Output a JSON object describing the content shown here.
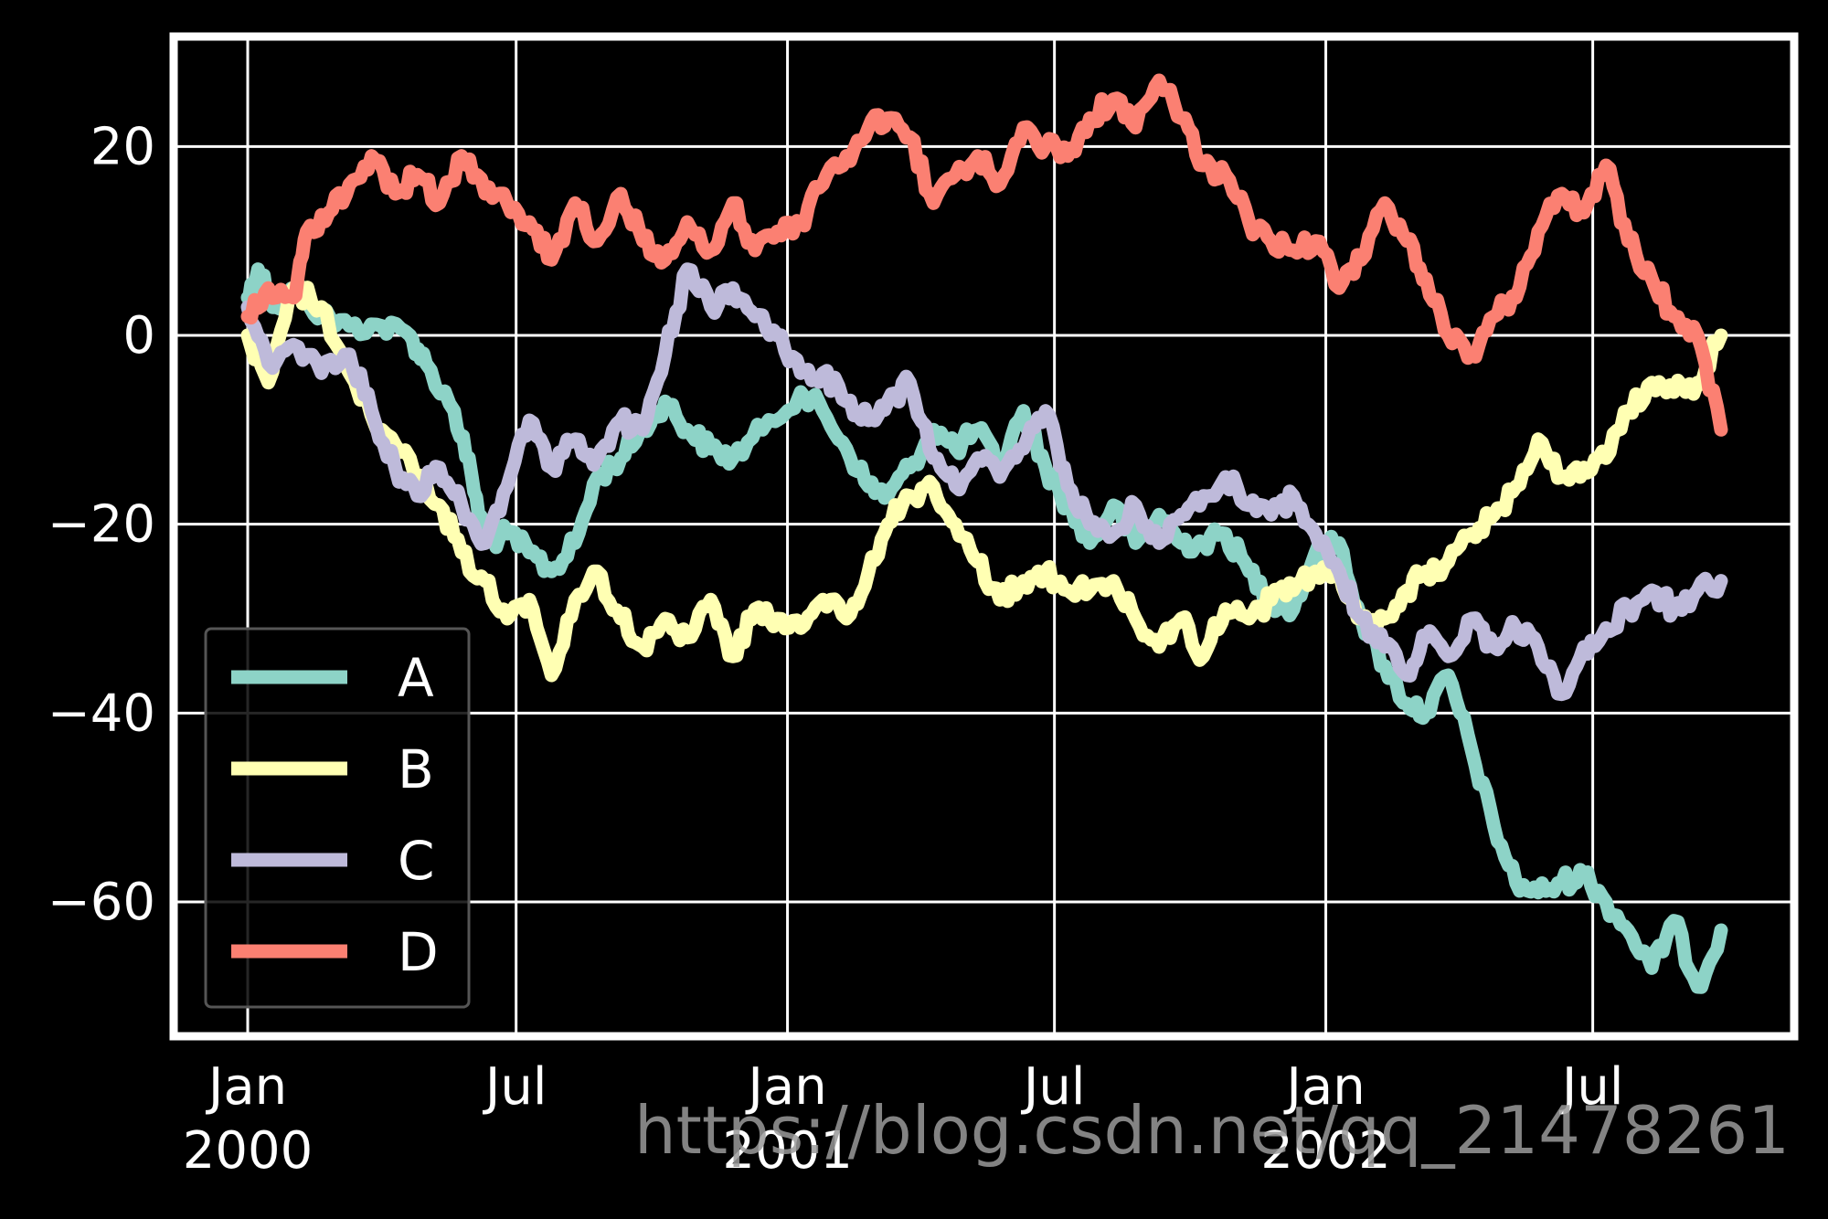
{
  "chart_data": {
    "type": "line",
    "title": "",
    "xlabel": "",
    "ylabel": "",
    "x_range": [
      "2000-01-01",
      "2002-09-26"
    ],
    "ylim": [
      -75,
      32
    ],
    "grid": true,
    "legend_position": "lower left",
    "background": "#000000",
    "y_ticks": [
      {
        "value": 20,
        "label": "20"
      },
      {
        "value": 0,
        "label": "0"
      },
      {
        "value": -20,
        "label": "−20"
      },
      {
        "value": -40,
        "label": "−40"
      },
      {
        "value": -60,
        "label": "−60"
      }
    ],
    "x_ticks": [
      {
        "date": "2000-01-01",
        "label_line1": "Jan",
        "label_line2": "2000"
      },
      {
        "date": "2000-07-01",
        "label_line1": "Jul",
        "label_line2": ""
      },
      {
        "date": "2001-01-01",
        "label_line1": "Jan",
        "label_line2": "2001"
      },
      {
        "date": "2001-07-01",
        "label_line1": "Jul",
        "label_line2": ""
      },
      {
        "date": "2002-01-01",
        "label_line1": "Jan",
        "label_line2": "2002"
      },
      {
        "date": "2002-07-01",
        "label_line1": "Jul",
        "label_line2": ""
      }
    ],
    "series": [
      {
        "name": "A",
        "color": "#8dd3c7",
        "points": [
          [
            "2000-01-01",
            4
          ],
          [
            "2000-01-08",
            7
          ],
          [
            "2000-01-20",
            3
          ],
          [
            "2000-02-05",
            5
          ],
          [
            "2000-02-20",
            2
          ],
          [
            "2000-03-10",
            1
          ],
          [
            "2000-04-01",
            1
          ],
          [
            "2000-04-20",
            0
          ],
          [
            "2000-05-01",
            -3
          ],
          [
            "2000-05-20",
            -8
          ],
          [
            "2000-06-01",
            -15
          ],
          [
            "2000-06-10",
            -22
          ],
          [
            "2000-06-25",
            -21
          ],
          [
            "2000-07-10",
            -23
          ],
          [
            "2000-07-25",
            -25
          ],
          [
            "2000-08-10",
            -22
          ],
          [
            "2000-08-25",
            -15
          ],
          [
            "2000-09-10",
            -13
          ],
          [
            "2000-09-25",
            -10
          ],
          [
            "2000-10-10",
            -7
          ],
          [
            "2000-10-25",
            -10
          ],
          [
            "2000-11-10",
            -12
          ],
          [
            "2000-11-25",
            -13
          ],
          [
            "2000-12-15",
            -10
          ],
          [
            "2001-01-10",
            -6
          ],
          [
            "2001-01-25",
            -8
          ],
          [
            "2001-02-10",
            -12
          ],
          [
            "2001-02-25",
            -16
          ],
          [
            "2001-03-10",
            -17
          ],
          [
            "2001-03-25",
            -14
          ],
          [
            "2001-04-10",
            -10
          ],
          [
            "2001-04-25",
            -12
          ],
          [
            "2001-05-10",
            -10
          ],
          [
            "2001-05-25",
            -14
          ],
          [
            "2001-06-10",
            -8
          ],
          [
            "2001-06-25",
            -14
          ],
          [
            "2001-07-10",
            -18
          ],
          [
            "2001-07-25",
            -22
          ],
          [
            "2001-08-10",
            -18
          ],
          [
            "2001-08-25",
            -22
          ],
          [
            "2001-09-10",
            -19
          ],
          [
            "2001-09-25",
            -22
          ],
          [
            "2001-10-10",
            -22
          ],
          [
            "2001-10-25",
            -21
          ],
          [
            "2001-11-10",
            -25
          ],
          [
            "2001-11-25",
            -28
          ],
          [
            "2001-12-10",
            -29
          ],
          [
            "2001-12-25",
            -23
          ],
          [
            "2002-01-10",
            -22
          ],
          [
            "2002-01-25",
            -30
          ],
          [
            "2002-02-10",
            -35
          ],
          [
            "2002-02-25",
            -39
          ],
          [
            "2002-03-10",
            -40
          ],
          [
            "2002-03-25",
            -36
          ],
          [
            "2002-04-10",
            -44
          ],
          [
            "2002-04-25",
            -52
          ],
          [
            "2002-05-10",
            -58
          ],
          [
            "2002-05-25",
            -59
          ],
          [
            "2002-06-10",
            -58
          ],
          [
            "2002-06-25",
            -57
          ],
          [
            "2002-07-10",
            -60
          ],
          [
            "2002-07-25",
            -63
          ],
          [
            "2002-08-10",
            -67
          ],
          [
            "2002-08-25",
            -62
          ],
          [
            "2002-09-10",
            -69
          ],
          [
            "2002-09-26",
            -63
          ]
        ]
      },
      {
        "name": "B",
        "color": "#ffffb3",
        "points": [
          [
            "2000-01-01",
            0
          ],
          [
            "2000-01-15",
            -5
          ],
          [
            "2000-02-01",
            5
          ],
          [
            "2000-02-20",
            3
          ],
          [
            "2000-03-10",
            -4
          ],
          [
            "2000-04-01",
            -10
          ],
          [
            "2000-04-20",
            -13
          ],
          [
            "2000-05-10",
            -18
          ],
          [
            "2000-05-25",
            -23
          ],
          [
            "2000-06-10",
            -26
          ],
          [
            "2000-06-25",
            -30
          ],
          [
            "2000-07-10",
            -28
          ],
          [
            "2000-07-25",
            -36
          ],
          [
            "2000-08-10",
            -28
          ],
          [
            "2000-08-25",
            -25
          ],
          [
            "2000-09-10",
            -30
          ],
          [
            "2000-09-25",
            -33
          ],
          [
            "2000-10-10",
            -30
          ],
          [
            "2000-10-25",
            -32
          ],
          [
            "2000-11-10",
            -28
          ],
          [
            "2000-11-25",
            -34
          ],
          [
            "2000-12-10",
            -29
          ],
          [
            "2000-12-25",
            -30
          ],
          [
            "2001-01-10",
            -31
          ],
          [
            "2001-01-25",
            -28
          ],
          [
            "2001-02-10",
            -30
          ],
          [
            "2001-02-25",
            -25
          ],
          [
            "2001-03-10",
            -20
          ],
          [
            "2001-03-25",
            -17
          ],
          [
            "2001-04-10",
            -16
          ],
          [
            "2001-04-25",
            -20
          ],
          [
            "2001-05-10",
            -24
          ],
          [
            "2001-05-25",
            -28
          ],
          [
            "2001-06-10",
            -26
          ],
          [
            "2001-06-25",
            -25
          ],
          [
            "2001-07-10",
            -27
          ],
          [
            "2001-07-25",
            -27
          ],
          [
            "2001-08-10",
            -26
          ],
          [
            "2001-08-25",
            -30
          ],
          [
            "2001-09-10",
            -33
          ],
          [
            "2001-09-25",
            -30
          ],
          [
            "2001-10-10",
            -34
          ],
          [
            "2001-10-25",
            -29
          ],
          [
            "2001-11-10",
            -30
          ],
          [
            "2001-11-25",
            -28
          ],
          [
            "2001-12-10",
            -27
          ],
          [
            "2001-12-25",
            -25
          ],
          [
            "2002-01-10",
            -25
          ],
          [
            "2002-01-25",
            -30
          ],
          [
            "2002-02-10",
            -30
          ],
          [
            "2002-02-25",
            -27
          ],
          [
            "2002-03-10",
            -25
          ],
          [
            "2002-03-25",
            -24
          ],
          [
            "2002-04-10",
            -21
          ],
          [
            "2002-04-25",
            -19
          ],
          [
            "2002-05-10",
            -16
          ],
          [
            "2002-05-25",
            -11
          ],
          [
            "2002-06-10",
            -15
          ],
          [
            "2002-06-25",
            -14
          ],
          [
            "2002-07-10",
            -13
          ],
          [
            "2002-07-25",
            -8
          ],
          [
            "2002-08-10",
            -5
          ],
          [
            "2002-08-25",
            -6
          ],
          [
            "2002-09-10",
            -5
          ],
          [
            "2002-09-26",
            0
          ]
        ]
      },
      {
        "name": "C",
        "color": "#bebada",
        "points": [
          [
            "2000-01-01",
            3
          ],
          [
            "2000-01-15",
            -3
          ],
          [
            "2000-02-01",
            -1
          ],
          [
            "2000-02-20",
            -4
          ],
          [
            "2000-03-10",
            -2
          ],
          [
            "2000-03-25",
            -8
          ],
          [
            "2000-04-10",
            -14
          ],
          [
            "2000-04-25",
            -17
          ],
          [
            "2000-05-10",
            -14
          ],
          [
            "2000-05-25",
            -18
          ],
          [
            "2000-06-10",
            -22
          ],
          [
            "2000-06-25",
            -16
          ],
          [
            "2000-07-10",
            -9
          ],
          [
            "2000-07-25",
            -14
          ],
          [
            "2000-08-10",
            -11
          ],
          [
            "2000-08-25",
            -13
          ],
          [
            "2000-09-10",
            -9
          ],
          [
            "2000-09-25",
            -10
          ],
          [
            "2000-10-10",
            -2
          ],
          [
            "2000-10-25",
            7
          ],
          [
            "2000-11-10",
            3
          ],
          [
            "2000-11-25",
            5
          ],
          [
            "2000-12-10",
            2
          ],
          [
            "2000-12-25",
            0
          ],
          [
            "2001-01-10",
            -4
          ],
          [
            "2001-01-25",
            -4
          ],
          [
            "2001-02-10",
            -7
          ],
          [
            "2001-02-25",
            -9
          ],
          [
            "2001-03-10",
            -7
          ],
          [
            "2001-03-25",
            -5
          ],
          [
            "2001-04-10",
            -13
          ],
          [
            "2001-04-25",
            -16
          ],
          [
            "2001-05-10",
            -13
          ],
          [
            "2001-05-25",
            -15
          ],
          [
            "2001-06-10",
            -12
          ],
          [
            "2001-06-25",
            -8
          ],
          [
            "2001-07-10",
            -16
          ],
          [
            "2001-07-25",
            -20
          ],
          [
            "2001-08-10",
            -21
          ],
          [
            "2001-08-25",
            -18
          ],
          [
            "2001-09-10",
            -22
          ],
          [
            "2001-09-25",
            -19
          ],
          [
            "2001-10-10",
            -17
          ],
          [
            "2001-10-25",
            -15
          ],
          [
            "2001-11-10",
            -18
          ],
          [
            "2001-11-25",
            -19
          ],
          [
            "2001-12-10",
            -17
          ],
          [
            "2001-12-25",
            -21
          ],
          [
            "2002-01-10",
            -25
          ],
          [
            "2002-01-25",
            -30
          ],
          [
            "2002-02-10",
            -33
          ],
          [
            "2002-02-25",
            -36
          ],
          [
            "2002-03-10",
            -32
          ],
          [
            "2002-03-25",
            -34
          ],
          [
            "2002-04-10",
            -30
          ],
          [
            "2002-04-25",
            -33
          ],
          [
            "2002-05-10",
            -31
          ],
          [
            "2002-05-25",
            -33
          ],
          [
            "2002-06-10",
            -38
          ],
          [
            "2002-06-25",
            -33
          ],
          [
            "2002-07-10",
            -31
          ],
          [
            "2002-07-25",
            -29
          ],
          [
            "2002-08-10",
            -27
          ],
          [
            "2002-08-25",
            -29
          ],
          [
            "2002-09-10",
            -27
          ],
          [
            "2002-09-26",
            -26
          ]
        ]
      },
      {
        "name": "D",
        "color": "#fb8072",
        "points": [
          [
            "2000-01-01",
            2
          ],
          [
            "2000-01-15",
            5
          ],
          [
            "2000-02-01",
            4
          ],
          [
            "2000-02-10",
            11
          ],
          [
            "2000-02-25",
            13
          ],
          [
            "2000-03-10",
            16
          ],
          [
            "2000-03-25",
            19
          ],
          [
            "2000-04-10",
            15
          ],
          [
            "2000-04-25",
            17
          ],
          [
            "2000-05-10",
            14
          ],
          [
            "2000-05-25",
            19
          ],
          [
            "2000-06-10",
            15
          ],
          [
            "2000-06-25",
            14
          ],
          [
            "2000-07-10",
            12
          ],
          [
            "2000-07-25",
            8
          ],
          [
            "2000-08-10",
            14
          ],
          [
            "2000-08-25",
            10
          ],
          [
            "2000-09-10",
            15
          ],
          [
            "2000-09-25",
            10
          ],
          [
            "2000-10-10",
            8
          ],
          [
            "2000-10-25",
            12
          ],
          [
            "2000-11-10",
            9
          ],
          [
            "2000-11-25",
            14
          ],
          [
            "2000-12-10",
            9
          ],
          [
            "2000-12-25",
            11
          ],
          [
            "2001-01-10",
            12
          ],
          [
            "2001-01-25",
            16
          ],
          [
            "2001-02-10",
            19
          ],
          [
            "2001-02-25",
            22
          ],
          [
            "2001-03-10",
            23
          ],
          [
            "2001-03-25",
            21
          ],
          [
            "2001-04-10",
            14
          ],
          [
            "2001-04-25",
            17
          ],
          [
            "2001-05-10",
            19
          ],
          [
            "2001-05-25",
            16
          ],
          [
            "2001-06-10",
            22
          ],
          [
            "2001-06-25",
            20
          ],
          [
            "2001-07-10",
            19
          ],
          [
            "2001-07-25",
            23
          ],
          [
            "2001-08-10",
            25
          ],
          [
            "2001-08-25",
            22
          ],
          [
            "2001-09-10",
            27
          ],
          [
            "2001-09-25",
            23
          ],
          [
            "2001-10-10",
            18
          ],
          [
            "2001-10-25",
            17
          ],
          [
            "2001-11-10",
            12
          ],
          [
            "2001-11-25",
            10
          ],
          [
            "2001-12-10",
            9
          ],
          [
            "2001-12-25",
            10
          ],
          [
            "2002-01-10",
            5
          ],
          [
            "2002-01-25",
            8
          ],
          [
            "2002-02-10",
            14
          ],
          [
            "2002-02-25",
            10
          ],
          [
            "2002-03-10",
            6
          ],
          [
            "2002-03-25",
            0
          ],
          [
            "2002-04-10",
            -2
          ],
          [
            "2002-04-25",
            2
          ],
          [
            "2002-05-10",
            4
          ],
          [
            "2002-05-25",
            11
          ],
          [
            "2002-06-10",
            15
          ],
          [
            "2002-06-25",
            13
          ],
          [
            "2002-07-10",
            18
          ],
          [
            "2002-07-25",
            10
          ],
          [
            "2002-08-10",
            6
          ],
          [
            "2002-08-25",
            2
          ],
          [
            "2002-09-10",
            0
          ],
          [
            "2002-09-26",
            -10
          ]
        ]
      }
    ]
  },
  "watermark": {
    "text": "https://blog.csdn.net/qq_21478261",
    "color": "#9a9a9a"
  }
}
